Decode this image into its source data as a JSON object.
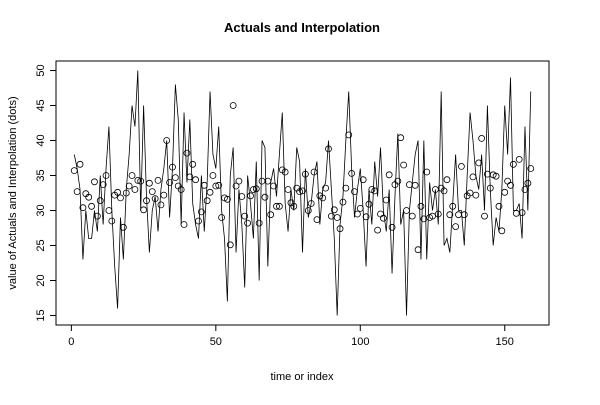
{
  "chart_data": {
    "type": "line",
    "title": "Actuals and Interpolation",
    "x_label": "time or index",
    "y_label": "value of Actuals and Interpolation (dots)",
    "x": [
      1,
      2,
      3,
      4,
      5,
      6,
      7,
      8,
      9,
      10,
      11,
      12,
      13,
      14,
      15,
      16,
      17,
      18,
      19,
      20,
      21,
      22,
      23,
      24,
      25,
      26,
      27,
      28,
      29,
      30,
      31,
      32,
      33,
      34,
      35,
      36,
      37,
      38,
      39,
      40,
      41,
      42,
      43,
      44,
      45,
      46,
      47,
      48,
      49,
      50,
      51,
      52,
      53,
      54,
      55,
      56,
      57,
      58,
      59,
      60,
      61,
      62,
      63,
      64,
      65,
      66,
      67,
      68,
      69,
      70,
      71,
      72,
      73,
      74,
      75,
      76,
      77,
      78,
      79,
      80,
      81,
      82,
      83,
      84,
      85,
      86,
      87,
      88,
      89,
      90,
      91,
      92,
      93,
      94,
      95,
      96,
      97,
      98,
      99,
      100,
      101,
      102,
      103,
      104,
      105,
      106,
      107,
      108,
      109,
      110,
      111,
      112,
      113,
      114,
      115,
      116,
      117,
      118,
      119,
      120,
      121,
      122,
      123,
      124,
      125,
      126,
      127,
      128,
      129,
      130,
      131,
      132,
      133,
      134,
      135,
      136,
      137,
      138,
      139,
      140,
      141,
      142,
      143,
      144,
      145,
      146,
      147,
      148,
      149,
      150,
      151,
      152,
      153,
      154,
      155,
      156,
      157,
      158,
      159
    ],
    "series": [
      {
        "name": "Actuals",
        "style": "line",
        "color": "#000000",
        "values": [
          38,
          36,
          33,
          23,
          30,
          26,
          26,
          30,
          27,
          35,
          28,
          36,
          42,
          30,
          22,
          16,
          29,
          23,
          33,
          38,
          45,
          42,
          50,
          30,
          45,
          32,
          24,
          30,
          32,
          27,
          33,
          36,
          40,
          29,
          36,
          48,
          43,
          28,
          44,
          34,
          43,
          31,
          28,
          26,
          35,
          27,
          34,
          47,
          38,
          36,
          42,
          30,
          26,
          17,
          35,
          39,
          24,
          33,
          28,
          19,
          35,
          31,
          26,
          37,
          20,
          40,
          39,
          22,
          34,
          36,
          32,
          38,
          44,
          31,
          27,
          33,
          30,
          39,
          37,
          24,
          36,
          29,
          31,
          35,
          37,
          28,
          33,
          34,
          40,
          33,
          26,
          15,
          28,
          32,
          40,
          47,
          36,
          29,
          33,
          36,
          30,
          22,
          33,
          28,
          37,
          32,
          39,
          30,
          27,
          33,
          21,
          32,
          41,
          28,
          30,
          15,
          30,
          34,
          38,
          40,
          23,
          40,
          23,
          34,
          30,
          33,
          28,
          47,
          25,
          26,
          24,
          31,
          38,
          30,
          30,
          25,
          35,
          44,
          40,
          35,
          33,
          38,
          30,
          45,
          33,
          25,
          29,
          27,
          33,
          45,
          38,
          49,
          30,
          30,
          31,
          26,
          42,
          30,
          47
        ]
      },
      {
        "name": "Interpolation",
        "style": "points",
        "color": "#000000",
        "values": [
          35.7,
          32.7,
          36.6,
          30.4,
          32.4,
          31.9,
          30.6,
          34.1,
          29.2,
          31.4,
          33.7,
          35,
          30,
          28.5,
          32.2,
          32.6,
          31.8,
          27.6,
          32.5,
          33.5,
          35,
          33,
          34.3,
          34.2,
          30.1,
          31.4,
          33.9,
          32.7,
          31.7,
          34.3,
          30.8,
          32.2,
          40,
          34,
          36.2,
          34.7,
          33.5,
          33,
          28,
          38.2,
          34.8,
          36.6,
          34.4,
          28.5,
          29.8,
          33.6,
          31.4,
          32.6,
          35,
          33.5,
          33.6,
          29,
          31.8,
          31.6,
          25.1,
          45,
          33.5,
          34.2,
          32,
          29.2,
          28.2,
          32.1,
          33,
          33.1,
          28.2,
          34.2,
          31.9,
          34.2,
          29.4,
          33.5,
          30.6,
          30.6,
          35.8,
          35.5,
          33,
          31.1,
          30.6,
          33.2,
          32.7,
          32.8,
          35.2,
          30,
          31,
          35.5,
          28.7,
          32.1,
          31.8,
          33.2,
          38.8,
          29.2,
          30.1,
          29,
          27.4,
          31.2,
          33.2,
          40.8,
          35.3,
          32.7,
          29.5,
          30.3,
          34.4,
          29.1,
          30.9,
          33,
          32.8,
          27.2,
          29.5,
          28.9,
          31.5,
          35.1,
          27.6,
          33.7,
          34.2,
          40.4,
          36.5,
          30,
          33.7,
          29.2,
          33.6,
          24.4,
          30.6,
          28.8,
          35.5,
          29,
          29.2,
          33,
          29.5,
          33.2,
          32.8,
          34.4,
          29.4,
          30.6,
          27.7,
          29.4,
          36.3,
          29.4,
          32.1,
          32.5,
          34.8,
          32.2,
          36.8,
          40.3,
          29.2,
          35.2,
          33.2,
          35.1,
          34.9,
          30.6,
          27.1,
          32.6,
          34.2,
          33.6,
          36.6,
          29.6,
          37.3,
          29.7,
          33,
          33.9,
          36
        ]
      }
    ],
    "xlim": [
      -5.32,
      165.32
    ],
    "xticks": [
      0,
      50,
      100,
      150
    ],
    "ylim": [
      13.64,
      51.36
    ],
    "yticks": [
      15,
      20,
      25,
      30,
      35,
      40,
      45,
      50
    ]
  }
}
